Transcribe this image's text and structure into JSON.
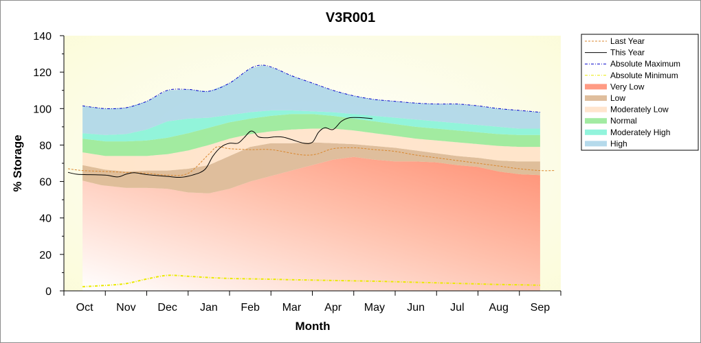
{
  "chart_data": {
    "type": "area",
    "title": "V3R001",
    "xlabel": "Month",
    "ylabel": "% Storage",
    "ylim": [
      0,
      140
    ],
    "yticks": [
      0,
      20,
      40,
      60,
      80,
      100,
      120,
      140
    ],
    "xlim": [
      0,
      11.5
    ],
    "categories": [
      "Oct",
      "Nov",
      "Dec",
      "Jan",
      "Feb",
      "Mar",
      "Apr",
      "May",
      "Jun",
      "Jul",
      "Aug",
      "Sep"
    ],
    "legend_position": "right",
    "bands": [
      {
        "name": "Very Low",
        "color": "#ff8a6e",
        "lower": [
          [
            -0.05,
            0
          ],
          [
            11,
            0
          ]
        ],
        "upper": [
          [
            -0.05,
            60.5
          ],
          [
            0.4,
            58
          ],
          [
            1,
            56.5
          ],
          [
            1.5,
            56.5
          ],
          [
            2,
            56
          ],
          [
            2.5,
            54
          ],
          [
            3,
            53.5
          ],
          [
            3.5,
            56
          ],
          [
            4,
            60
          ],
          [
            4.5,
            63
          ],
          [
            5,
            66
          ],
          [
            5.5,
            69
          ],
          [
            6,
            72
          ],
          [
            6.5,
            73.5
          ],
          [
            7,
            72
          ],
          [
            7.5,
            71
          ],
          [
            8,
            71
          ],
          [
            8.5,
            70.5
          ],
          [
            9,
            69
          ],
          [
            9.5,
            68
          ],
          [
            10,
            65.5
          ],
          [
            10.5,
            64
          ],
          [
            11,
            63.5
          ]
        ]
      },
      {
        "name": "Low",
        "color": "#d9b38c",
        "lower": "Very Low",
        "upper": [
          [
            -0.05,
            69
          ],
          [
            0.5,
            66.5
          ],
          [
            1,
            65.5
          ],
          [
            1.5,
            66
          ],
          [
            2,
            66
          ],
          [
            2.5,
            67
          ],
          [
            3,
            69
          ],
          [
            3.5,
            74
          ],
          [
            4,
            79
          ],
          [
            4.5,
            81
          ],
          [
            5,
            81
          ],
          [
            5.5,
            81.5
          ],
          [
            6,
            81
          ],
          [
            6.5,
            80.5
          ],
          [
            7,
            79.5
          ],
          [
            7.5,
            78.5
          ],
          [
            8,
            77
          ],
          [
            8.5,
            75.5
          ],
          [
            9,
            74
          ],
          [
            9.5,
            73
          ],
          [
            10,
            71.5
          ],
          [
            10.5,
            71
          ],
          [
            11,
            71
          ]
        ]
      },
      {
        "name": "Moderately Low",
        "color": "#ffe1c6",
        "lower": "Low",
        "upper": [
          [
            -0.05,
            76
          ],
          [
            0.5,
            74
          ],
          [
            1,
            74
          ],
          [
            1.5,
            74
          ],
          [
            2,
            75
          ],
          [
            2.5,
            77
          ],
          [
            3,
            80
          ],
          [
            3.5,
            83.5
          ],
          [
            4,
            86
          ],
          [
            4.5,
            87.5
          ],
          [
            5,
            88.5
          ],
          [
            5.5,
            89
          ],
          [
            6,
            89
          ],
          [
            6.5,
            88
          ],
          [
            7,
            86.5
          ],
          [
            7.5,
            85
          ],
          [
            8,
            83.5
          ],
          [
            8.5,
            82.5
          ],
          [
            9,
            81.5
          ],
          [
            9.5,
            80.5
          ],
          [
            10,
            79.5
          ],
          [
            10.5,
            79
          ],
          [
            11,
            79
          ]
        ]
      },
      {
        "name": "Normal",
        "color": "#92e892",
        "lower": "Moderately Low",
        "upper": [
          [
            -0.05,
            83.5
          ],
          [
            0.5,
            82
          ],
          [
            1,
            82
          ],
          [
            1.5,
            82.5
          ],
          [
            2,
            84
          ],
          [
            2.5,
            86.5
          ],
          [
            3,
            89.5
          ],
          [
            3.5,
            92.5
          ],
          [
            4,
            94.5
          ],
          [
            4.5,
            96
          ],
          [
            5,
            97
          ],
          [
            5.5,
            97
          ],
          [
            6,
            96
          ],
          [
            6.5,
            94.5
          ],
          [
            7,
            93
          ],
          [
            7.5,
            91.5
          ],
          [
            8,
            90
          ],
          [
            8.5,
            89
          ],
          [
            9,
            88
          ],
          [
            9.5,
            87
          ],
          [
            10,
            86
          ],
          [
            10.5,
            85.5
          ],
          [
            11,
            85.5
          ]
        ]
      },
      {
        "name": "Moderately High",
        "color": "#7ff2d6",
        "lower": "Normal",
        "upper": [
          [
            -0.05,
            86.5
          ],
          [
            0.5,
            85.5
          ],
          [
            1,
            86
          ],
          [
            1.5,
            88.5
          ],
          [
            2,
            93
          ],
          [
            2.5,
            94.5
          ],
          [
            3,
            95
          ],
          [
            3.5,
            96.5
          ],
          [
            4,
            98
          ],
          [
            4.5,
            99
          ],
          [
            5,
            99
          ],
          [
            5.5,
            98.5
          ],
          [
            6,
            98
          ],
          [
            6.5,
            97
          ],
          [
            7,
            96
          ],
          [
            7.5,
            95
          ],
          [
            8,
            94
          ],
          [
            8.5,
            93
          ],
          [
            9,
            92
          ],
          [
            9.5,
            91
          ],
          [
            10,
            90
          ],
          [
            10.5,
            89
          ],
          [
            11,
            89
          ]
        ]
      },
      {
        "name": "High",
        "color": "#a8d4e8",
        "lower": "Moderately High",
        "upper": "Absolute Maximum"
      }
    ],
    "series": [
      {
        "name": "Last Year",
        "style": "dashed",
        "color": "#d9862c",
        "points": [
          [
            -0.4,
            67
          ],
          [
            -0.05,
            66
          ],
          [
            0.5,
            65.5
          ],
          [
            1,
            65
          ],
          [
            1.5,
            64.5
          ],
          [
            2,
            63.5
          ],
          [
            2.5,
            64.5
          ],
          [
            3,
            75
          ],
          [
            3.2,
            79
          ],
          [
            3.5,
            78
          ],
          [
            4,
            77.5
          ],
          [
            4.5,
            77.5
          ],
          [
            5,
            75.5
          ],
          [
            5.3,
            74.5
          ],
          [
            5.6,
            75
          ],
          [
            6,
            78
          ],
          [
            6.5,
            78.5
          ],
          [
            7,
            77.5
          ],
          [
            7.5,
            76.5
          ],
          [
            8,
            74.5
          ],
          [
            8.5,
            73
          ],
          [
            9,
            71.5
          ],
          [
            9.5,
            70
          ],
          [
            10,
            68.5
          ],
          [
            10.5,
            67
          ],
          [
            11,
            66
          ],
          [
            11.35,
            66
          ]
        ]
      },
      {
        "name": "This Year",
        "style": "solid",
        "color": "#000000",
        "points": [
          [
            -0.4,
            65
          ],
          [
            -0.2,
            64
          ],
          [
            0,
            63.8
          ],
          [
            0.5,
            63.5
          ],
          [
            0.8,
            62.5
          ],
          [
            1,
            64
          ],
          [
            1.2,
            64.8
          ],
          [
            1.5,
            63.8
          ],
          [
            2,
            62.8
          ],
          [
            2.3,
            62.3
          ],
          [
            2.6,
            63.5
          ],
          [
            2.9,
            66.5
          ],
          [
            3.1,
            74
          ],
          [
            3.3,
            79
          ],
          [
            3.5,
            81
          ],
          [
            3.7,
            81
          ],
          [
            3.85,
            84
          ],
          [
            4,
            87.5
          ],
          [
            4.1,
            87
          ],
          [
            4.2,
            84.5
          ],
          [
            4.4,
            84
          ],
          [
            4.6,
            84.5
          ],
          [
            4.8,
            84.3
          ],
          [
            5,
            83
          ],
          [
            5.3,
            81
          ],
          [
            5.5,
            81.5
          ],
          [
            5.65,
            87
          ],
          [
            5.8,
            89.5
          ],
          [
            6,
            88.5
          ],
          [
            6.2,
            93
          ],
          [
            6.4,
            95
          ],
          [
            6.7,
            95
          ],
          [
            6.95,
            94.5
          ]
        ]
      },
      {
        "name": "Absolute Maximum",
        "style": "dotdash",
        "color": "#0000cc",
        "points": [
          [
            -0.05,
            101.5
          ],
          [
            0.5,
            100
          ],
          [
            1,
            100.5
          ],
          [
            1.5,
            104
          ],
          [
            2,
            110
          ],
          [
            2.5,
            110.5
          ],
          [
            3,
            109.5
          ],
          [
            3.5,
            114
          ],
          [
            4,
            122
          ],
          [
            4.3,
            123.8
          ],
          [
            4.6,
            122
          ],
          [
            5,
            118
          ],
          [
            5.5,
            114
          ],
          [
            6,
            110
          ],
          [
            6.5,
            107
          ],
          [
            7,
            105
          ],
          [
            7.5,
            104
          ],
          [
            8,
            103
          ],
          [
            8.5,
            102.5
          ],
          [
            9,
            102.5
          ],
          [
            9.5,
            101.5
          ],
          [
            10,
            100
          ],
          [
            10.5,
            99
          ],
          [
            11,
            98
          ]
        ]
      },
      {
        "name": "Absolute Minimum",
        "style": "dotdash",
        "color": "#eaea00",
        "points": [
          [
            -0.05,
            2.3
          ],
          [
            0.5,
            3
          ],
          [
            1,
            4
          ],
          [
            1.5,
            6.5
          ],
          [
            2,
            8.5
          ],
          [
            2.5,
            8
          ],
          [
            3,
            7.3
          ],
          [
            3.5,
            6.8
          ],
          [
            4,
            6.6
          ],
          [
            4.5,
            6.4
          ],
          [
            5,
            6.1
          ],
          [
            5.5,
            5.9
          ],
          [
            6,
            5.7
          ],
          [
            6.5,
            5.5
          ],
          [
            7,
            5.3
          ],
          [
            7.5,
            5
          ],
          [
            8,
            4.7
          ],
          [
            8.5,
            4.4
          ],
          [
            9,
            4.1
          ],
          [
            9.5,
            3.8
          ],
          [
            10,
            3.5
          ],
          [
            10.5,
            3.3
          ],
          [
            11,
            3.1
          ]
        ]
      }
    ],
    "legend_entries": [
      {
        "label": "Last Year",
        "kind": "line",
        "style": "dashed",
        "color": "#d9862c"
      },
      {
        "label": "This Year",
        "kind": "line",
        "style": "solid",
        "color": "#000000"
      },
      {
        "label": "Absolute Maximum",
        "kind": "line",
        "style": "dotdash",
        "color": "#0000cc"
      },
      {
        "label": "Absolute Minimum",
        "kind": "line",
        "style": "dotdash",
        "color": "#eaea00"
      },
      {
        "label": "Very Low",
        "kind": "band",
        "color": "#ff8a6e"
      },
      {
        "label": "Low",
        "kind": "band",
        "color": "#d9b38c"
      },
      {
        "label": "Moderately Low",
        "kind": "band",
        "color": "#ffe1c6"
      },
      {
        "label": "Normal",
        "kind": "band",
        "color": "#92e892"
      },
      {
        "label": "Moderately High",
        "kind": "band",
        "color": "#7ff2d6"
      },
      {
        "label": "High",
        "kind": "band",
        "color": "#a8d4e8"
      }
    ],
    "colors": {
      "plot_background": "#fffee8",
      "grid": false
    }
  }
}
